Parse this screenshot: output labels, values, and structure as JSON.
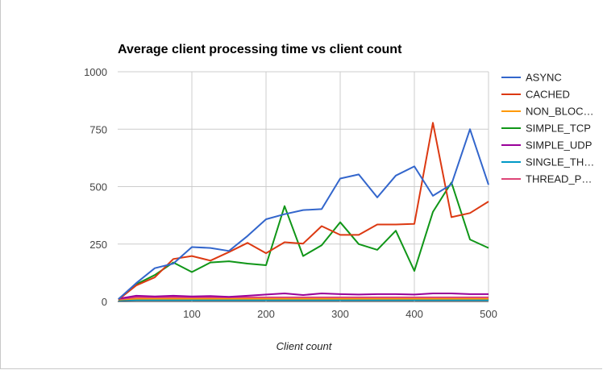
{
  "chart_data": {
    "type": "line",
    "title": "Average client processing time vs client count",
    "xlabel": "Client count",
    "ylabel": "",
    "xlim": [
      0,
      500
    ],
    "ylim": [
      0,
      1000
    ],
    "x_ticks": [
      100,
      200,
      300,
      400,
      500
    ],
    "y_ticks": [
      0,
      250,
      500,
      750,
      1000
    ],
    "grid": true,
    "legend_position": "right",
    "x": [
      1,
      25,
      50,
      75,
      100,
      125,
      150,
      175,
      200,
      225,
      250,
      275,
      300,
      325,
      350,
      375,
      400,
      425,
      450,
      475,
      500
    ],
    "series": [
      {
        "name": "ASYNC",
        "legend_label": "ASYNC",
        "color": "#3366cc",
        "values": [
          10,
          80,
          145,
          165,
          237,
          233,
          220,
          285,
          358,
          380,
          398,
          402,
          535,
          553,
          453,
          548,
          588,
          460,
          510,
          750,
          508
        ]
      },
      {
        "name": "CACHED",
        "legend_label": "CACHED",
        "color": "#dc3912",
        "values": [
          8,
          70,
          105,
          185,
          198,
          178,
          215,
          255,
          210,
          258,
          252,
          328,
          290,
          290,
          335,
          335,
          338,
          778,
          367,
          385,
          435
        ]
      },
      {
        "name": "NON_BLOCKING",
        "legend_label": "NON_BLOC…",
        "color": "#ff9900",
        "values": [
          8,
          12,
          12,
          12,
          12,
          12,
          12,
          12,
          12,
          12,
          12,
          12,
          12,
          12,
          12,
          12,
          12,
          12,
          12,
          12,
          12
        ]
      },
      {
        "name": "SIMPLE_TCP",
        "legend_label": "SIMPLE_TCP",
        "color": "#109618",
        "values": [
          10,
          75,
          115,
          170,
          128,
          170,
          175,
          165,
          158,
          415,
          198,
          245,
          345,
          250,
          225,
          308,
          133,
          390,
          518,
          270,
          233
        ]
      },
      {
        "name": "SIMPLE_UDP",
        "legend_label": "SIMPLE_UDP",
        "color": "#990099",
        "values": [
          12,
          25,
          22,
          25,
          22,
          24,
          20,
          25,
          30,
          35,
          28,
          35,
          32,
          30,
          32,
          32,
          30,
          35,
          35,
          32,
          32
        ]
      },
      {
        "name": "SINGLE_THREADED",
        "legend_label": "SINGLE_TH…",
        "color": "#0099c6",
        "values": [
          5,
          6,
          6,
          6,
          6,
          6,
          6,
          6,
          6,
          6,
          6,
          6,
          6,
          6,
          6,
          6,
          6,
          6,
          6,
          6,
          6
        ]
      },
      {
        "name": "THREAD_POOL",
        "legend_label": "THREAD_P…",
        "color": "#dd4477",
        "values": [
          10,
          18,
          18,
          18,
          18,
          18,
          18,
          18,
          18,
          18,
          18,
          18,
          18,
          18,
          18,
          18,
          18,
          18,
          18,
          18,
          18
        ]
      }
    ]
  }
}
